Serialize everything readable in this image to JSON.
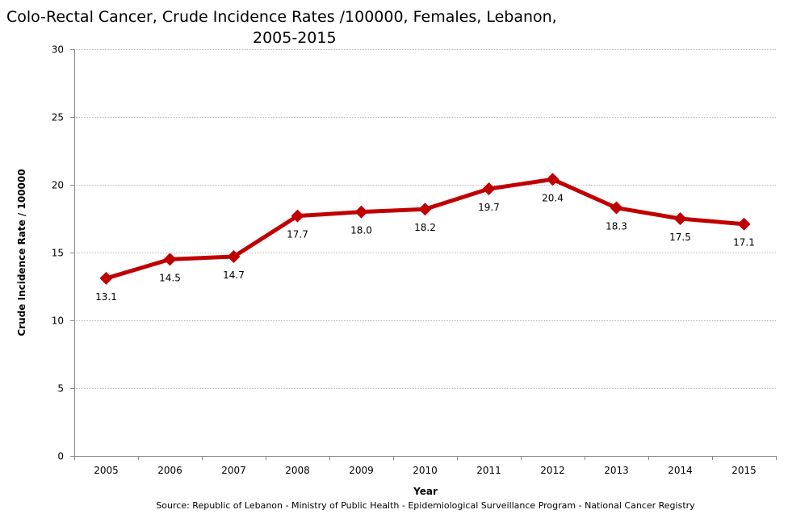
{
  "chart_data": {
    "type": "line",
    "title_line1": "Colo-Rectal Cancer, Crude Incidence Rates /100000,  Females, Lebanon,",
    "title_line2": "2005-2015",
    "xlabel": "Year",
    "ylabel": "Crude Incidence Rate / 100000",
    "categories": [
      "2005",
      "2006",
      "2007",
      "2008",
      "2009",
      "2010",
      "2011",
      "2012",
      "2013",
      "2014",
      "2015"
    ],
    "series": [
      {
        "name": "Females",
        "values": [
          13.1,
          14.5,
          14.7,
          17.7,
          18.0,
          18.2,
          19.7,
          20.4,
          18.3,
          17.5,
          17.1
        ],
        "labels": [
          "13.1",
          "14.5",
          "14.7",
          "17.7",
          "18.0",
          "18.2",
          "19.7",
          "20.4",
          "18.3",
          "17.5",
          "17.1"
        ],
        "color": "#C00000",
        "marker": "diamond"
      }
    ],
    "ylim": [
      0,
      30
    ],
    "yticks": [
      0,
      5,
      10,
      15,
      20,
      25,
      30
    ],
    "grid": "horizontal-dotted",
    "legend": "none",
    "source": "Source:  Republic of Lebanon  - Ministry of Public Health - Epidemiological Surveillance Program - National Cancer Registry"
  }
}
